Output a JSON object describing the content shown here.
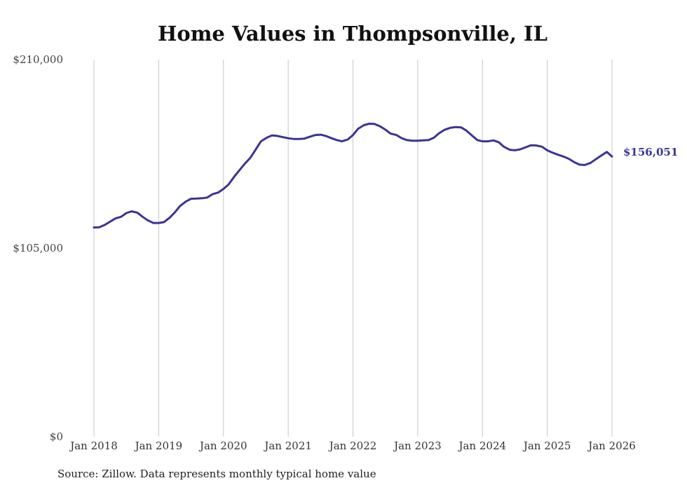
{
  "chart_data": {
    "type": "line",
    "title": "Home Values in Thompsonville, IL",
    "xlabel": "",
    "ylabel": "",
    "ylim": [
      0,
      210000
    ],
    "y_ticks": [
      {
        "value": 0,
        "label": "$0"
      },
      {
        "value": 105000,
        "label": "$105,000"
      },
      {
        "value": 210000,
        "label": "$210,000"
      }
    ],
    "x_ticks": [
      {
        "value": 2018,
        "label": "Jan 2018"
      },
      {
        "value": 2019,
        "label": "Jan 2019"
      },
      {
        "value": 2020,
        "label": "Jan 2020"
      },
      {
        "value": 2021,
        "label": "Jan 2021"
      },
      {
        "value": 2022,
        "label": "Jan 2022"
      },
      {
        "value": 2023,
        "label": "Jan 2023"
      },
      {
        "value": 2024,
        "label": "Jan 2024"
      },
      {
        "value": 2025,
        "label": "Jan 2025"
      },
      {
        "value": 2026,
        "label": "Jan 2026"
      }
    ],
    "xlim": [
      2018,
      2026
    ],
    "grid": "vertical",
    "series": [
      {
        "name": "Typical home value",
        "color": "#3b3494",
        "x": [
          2018.0,
          2018.08,
          2018.17,
          2018.25,
          2018.33,
          2018.42,
          2018.5,
          2018.58,
          2018.67,
          2018.75,
          2018.83,
          2018.92,
          2019.0,
          2019.08,
          2019.17,
          2019.25,
          2019.33,
          2019.42,
          2019.5,
          2019.58,
          2019.67,
          2019.75,
          2019.83,
          2019.92,
          2020.0,
          2020.08,
          2020.17,
          2020.25,
          2020.33,
          2020.42,
          2020.5,
          2020.58,
          2020.67,
          2020.75,
          2020.83,
          2020.92,
          2021.0,
          2021.08,
          2021.17,
          2021.25,
          2021.33,
          2021.42,
          2021.5,
          2021.58,
          2021.67,
          2021.75,
          2021.83,
          2021.92,
          2022.0,
          2022.08,
          2022.17,
          2022.25,
          2022.33,
          2022.42,
          2022.5,
          2022.58,
          2022.67,
          2022.75,
          2022.83,
          2022.92,
          2023.0,
          2023.08,
          2023.17,
          2023.25,
          2023.33,
          2023.42,
          2023.5,
          2023.58,
          2023.67,
          2023.75,
          2023.83,
          2023.92,
          2024.0,
          2024.08,
          2024.17,
          2024.25,
          2024.33,
          2024.42,
          2024.5,
          2024.58,
          2024.67,
          2024.75,
          2024.83,
          2024.92,
          2025.0,
          2025.08,
          2025.17,
          2025.25,
          2025.33,
          2025.42,
          2025.5,
          2025.58,
          2025.67,
          2025.75,
          2025.83,
          2025.92,
          2026.0
        ],
        "values": [
          116500,
          116600,
          118000,
          119800,
          121500,
          122500,
          124500,
          125500,
          124800,
          122500,
          120500,
          119000,
          119000,
          119500,
          122000,
          125000,
          128500,
          131000,
          132500,
          132600,
          132800,
          133200,
          135000,
          136000,
          138000,
          140500,
          145000,
          148500,
          152000,
          155500,
          160000,
          164500,
          166500,
          167800,
          167500,
          166800,
          166200,
          165800,
          165800,
          166000,
          167000,
          168000,
          168200,
          167500,
          166200,
          165200,
          164500,
          165500,
          168000,
          171500,
          173500,
          174300,
          174200,
          172800,
          171000,
          168800,
          168000,
          166300,
          165200,
          164800,
          164800,
          165000,
          165200,
          166500,
          169000,
          171000,
          172000,
          172400,
          172200,
          170500,
          168000,
          165200,
          164500,
          164500,
          165000,
          164000,
          161500,
          159800,
          159500,
          160000,
          161200,
          162300,
          162200,
          161500,
          159500,
          158200,
          157000,
          156000,
          154800,
          152800,
          151500,
          151300,
          152500,
          154500,
          156500,
          158600,
          156051
        ]
      }
    ],
    "end_label": "$156,051",
    "source": "Source: Zillow. Data represents monthly typical home value"
  }
}
